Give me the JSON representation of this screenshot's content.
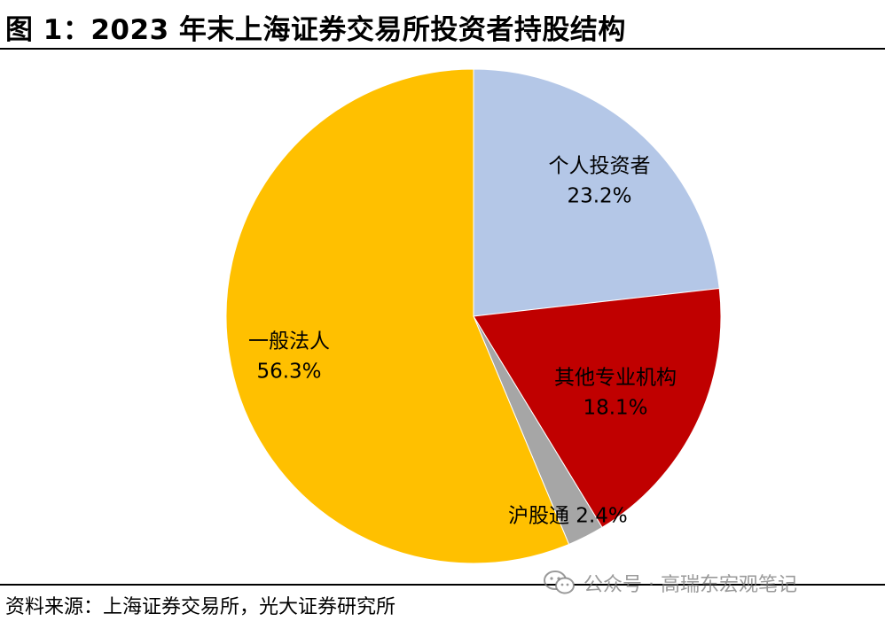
{
  "header": {
    "title": "图 1：2023 年末上海证券交易所投资者持股结构"
  },
  "footer": {
    "source": "资料来源：上海证券交易所，光大证券研究所"
  },
  "watermark": {
    "icon": "wechat-icon",
    "text": "公众号 · 高瑞东宏观笔记"
  },
  "chart_data": {
    "type": "pie",
    "title": "图 1：2023 年末上海证券交易所投资者持股结构",
    "start": "12 o'clock",
    "direction": "clockwise",
    "legend": "none",
    "slices": [
      {
        "name": "个人投资者",
        "value": 23.2,
        "label": "23.2%",
        "color": "#B4C7E7"
      },
      {
        "name": "其他专业机构",
        "value": 18.1,
        "label": "18.1%",
        "color": "#C00000"
      },
      {
        "name": "沪股通",
        "value": 2.4,
        "label": "2.4%",
        "color": "#A6A6A6"
      },
      {
        "name": "一般法人",
        "value": 56.3,
        "label": "56.3%",
        "color": "#FFC000"
      }
    ]
  }
}
